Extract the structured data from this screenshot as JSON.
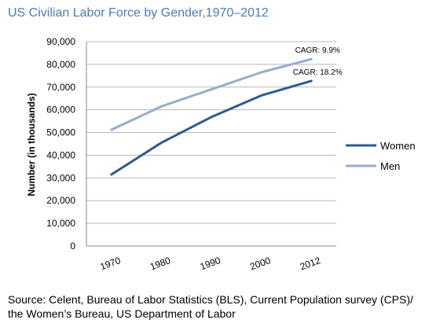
{
  "chart_data": {
    "type": "line",
    "title": "US Civilian Labor Force by Gender,1970–2012",
    "ylabel": "Number (in thousands)",
    "xlabel": "",
    "categories": [
      "1970",
      "1980",
      "1990",
      "2000",
      "2012"
    ],
    "y_ticks": [
      "0",
      "10,000",
      "20,000",
      "30,000",
      "40,000",
      "50,000",
      "60,000",
      "70,000",
      "80,000",
      "90,000"
    ],
    "ylim": [
      0,
      90000
    ],
    "grid": "horizontal",
    "legend_position": "right",
    "series": [
      {
        "name": "Women",
        "color": "#2e5b91",
        "values": [
          31500,
          45500,
          56800,
          66300,
          72700
        ],
        "annotation": "CAGR: 18.2%"
      },
      {
        "name": "Men",
        "color": "#97adcf",
        "values": [
          51200,
          61500,
          69000,
          76500,
          82300
        ],
        "annotation": "CAGR: 9.9%"
      }
    ]
  },
  "source": "Source: Celent, Bureau of Labor Statistics (BLS), Current Population survey (CPS)/ the Women’s Bureau, US Department of Labor"
}
